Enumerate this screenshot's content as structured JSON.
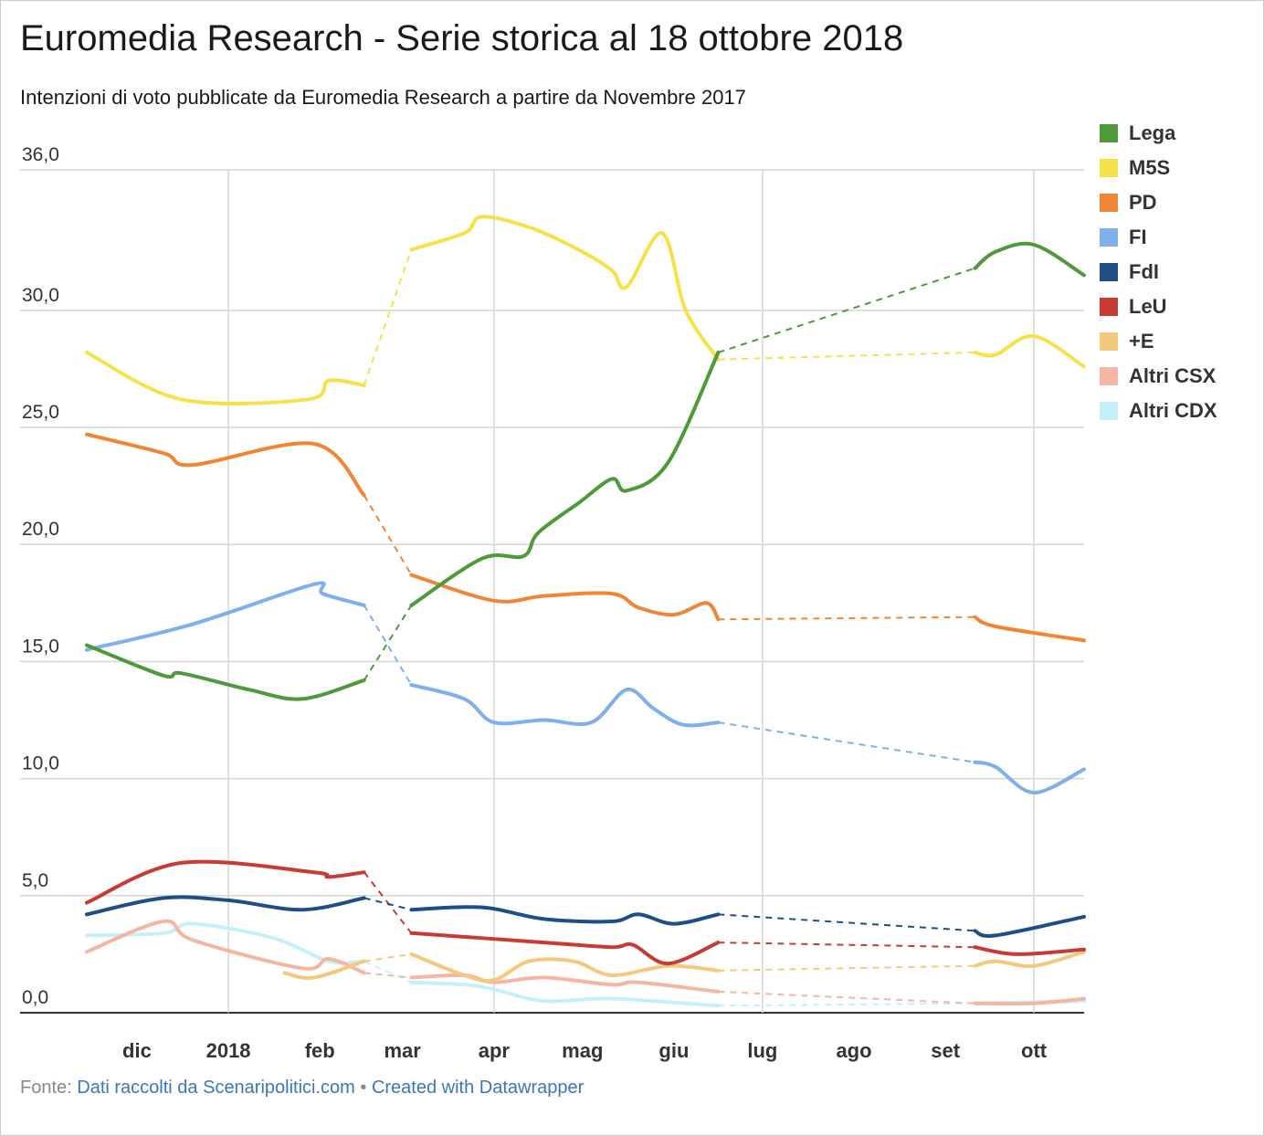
{
  "header": {
    "title": "Euromedia Research - Serie storica al 18 ottobre 2018",
    "subtitle": "Intenzioni di voto pubblicate da Euromedia Research a partire da Novembre 2017"
  },
  "footer": {
    "prefix": "Fonte: ",
    "source_label": "Dati raccolti da Scenaripolitici.com",
    "separator": " • ",
    "credit_label": "Created with Datawrapper"
  },
  "chart_data": {
    "type": "line",
    "title": "Euromedia Research - Serie storica al 18 ottobre 2018",
    "subtitle": "Intenzioni di voto pubblicate da Euromedia Research a partire da Novembre 2017",
    "xlabel": "",
    "ylabel": "",
    "x_axis": {
      "type": "date",
      "range": [
        "2017-11-14",
        "2018-10-18"
      ],
      "ticks": [
        {
          "date": "2017-12-01",
          "label": "dic"
        },
        {
          "date": "2018-01-01",
          "label": "2018"
        },
        {
          "date": "2018-02-01",
          "label": "feb"
        },
        {
          "date": "2018-03-01",
          "label": "mar"
        },
        {
          "date": "2018-04-01",
          "label": "apr"
        },
        {
          "date": "2018-05-01",
          "label": "mag"
        },
        {
          "date": "2018-06-01",
          "label": "giu"
        },
        {
          "date": "2018-07-01",
          "label": "lug"
        },
        {
          "date": "2018-08-01",
          "label": "ago"
        },
        {
          "date": "2018-09-01",
          "label": "set"
        },
        {
          "date": "2018-10-01",
          "label": "ott"
        }
      ],
      "vertical_grid": [
        "2018-01-01",
        "2018-04-01",
        "2018-07-01",
        "2018-10-01"
      ]
    },
    "y_axis": {
      "range": [
        0,
        36
      ],
      "ticks": [
        {
          "value": 0,
          "label": "0,0"
        },
        {
          "value": 5,
          "label": "5,0"
        },
        {
          "value": 10,
          "label": "10,0"
        },
        {
          "value": 15,
          "label": "15,0"
        },
        {
          "value": 20,
          "label": "20,0"
        },
        {
          "value": 25,
          "label": "25,0"
        },
        {
          "value": 30,
          "label": "30,0"
        },
        {
          "value": 36,
          "label": "36,0"
        }
      ]
    },
    "grid": true,
    "legend_position": "right",
    "gaps": [
      [
        "2018-02-16",
        "2018-03-04"
      ],
      [
        "2018-06-16",
        "2018-09-11"
      ]
    ],
    "series": [
      {
        "name": "Lega",
        "color": "#4e9a3a",
        "points": [
          [
            "2017-11-14",
            15.7
          ],
          [
            "2017-12-10",
            14.4
          ],
          [
            "2017-12-16",
            14.5
          ],
          [
            "2018-01-08",
            13.8
          ],
          [
            "2018-01-26",
            13.4
          ],
          [
            "2018-02-16",
            14.2
          ],
          [
            "2018-03-04",
            17.4
          ],
          [
            "2018-03-28",
            19.4
          ],
          [
            "2018-04-11",
            19.5
          ],
          [
            "2018-04-16",
            20.5
          ],
          [
            "2018-04-30",
            21.8
          ],
          [
            "2018-05-11",
            22.8
          ],
          [
            "2018-05-16",
            22.3
          ],
          [
            "2018-05-30",
            23.5
          ],
          [
            "2018-06-16",
            28.2
          ],
          [
            "2018-09-11",
            31.8
          ],
          [
            "2018-09-18",
            32.5
          ],
          [
            "2018-10-01",
            32.8
          ],
          [
            "2018-10-18",
            31.5
          ]
        ]
      },
      {
        "name": "M5S",
        "color": "#f5e24a",
        "points": [
          [
            "2017-11-14",
            28.2
          ],
          [
            "2017-12-16",
            26.2
          ],
          [
            "2018-01-28",
            26.2
          ],
          [
            "2018-02-04",
            27.0
          ],
          [
            "2018-02-16",
            26.8
          ],
          [
            "2018-03-04",
            32.6
          ],
          [
            "2018-03-22",
            33.3
          ],
          [
            "2018-03-28",
            34.0
          ],
          [
            "2018-04-14",
            33.5
          ],
          [
            "2018-05-01",
            32.5
          ],
          [
            "2018-05-11",
            31.7
          ],
          [
            "2018-05-16",
            31.0
          ],
          [
            "2018-05-28",
            33.3
          ],
          [
            "2018-06-05",
            30.0
          ],
          [
            "2018-06-16",
            27.9
          ],
          [
            "2018-09-11",
            28.2
          ],
          [
            "2018-09-18",
            28.1
          ],
          [
            "2018-10-01",
            28.9
          ],
          [
            "2018-10-18",
            27.6
          ]
        ]
      },
      {
        "name": "PD",
        "color": "#ef8636",
        "points": [
          [
            "2017-11-14",
            24.7
          ],
          [
            "2017-12-10",
            23.9
          ],
          [
            "2017-12-20",
            23.4
          ],
          [
            "2018-01-30",
            24.3
          ],
          [
            "2018-02-16",
            22.1
          ],
          [
            "2018-03-04",
            18.7
          ],
          [
            "2018-04-01",
            17.6
          ],
          [
            "2018-04-18",
            17.8
          ],
          [
            "2018-05-11",
            17.9
          ],
          [
            "2018-05-20",
            17.3
          ],
          [
            "2018-06-01",
            17.0
          ],
          [
            "2018-06-12",
            17.5
          ],
          [
            "2018-06-16",
            16.8
          ],
          [
            "2018-09-11",
            16.9
          ],
          [
            "2018-09-18",
            16.5
          ],
          [
            "2018-10-18",
            15.9
          ]
        ]
      },
      {
        "name": "FI",
        "color": "#7fb0ea",
        "points": [
          [
            "2017-11-14",
            15.5
          ],
          [
            "2017-12-20",
            16.6
          ],
          [
            "2018-01-30",
            18.3
          ],
          [
            "2018-02-02",
            17.9
          ],
          [
            "2018-02-16",
            17.4
          ],
          [
            "2018-03-04",
            14.0
          ],
          [
            "2018-03-22",
            13.4
          ],
          [
            "2018-04-01",
            12.4
          ],
          [
            "2018-04-18",
            12.5
          ],
          [
            "2018-05-04",
            12.4
          ],
          [
            "2018-05-16",
            13.8
          ],
          [
            "2018-05-25",
            13.0
          ],
          [
            "2018-06-04",
            12.3
          ],
          [
            "2018-06-16",
            12.4
          ],
          [
            "2018-09-11",
            10.7
          ],
          [
            "2018-09-18",
            10.5
          ],
          [
            "2018-10-01",
            9.4
          ],
          [
            "2018-10-18",
            10.4
          ]
        ]
      },
      {
        "name": "FdI",
        "color": "#1f4e87",
        "points": [
          [
            "2017-11-14",
            4.2
          ],
          [
            "2017-12-10",
            4.9
          ],
          [
            "2018-01-01",
            4.8
          ],
          [
            "2018-01-26",
            4.4
          ],
          [
            "2018-02-16",
            4.9
          ],
          [
            "2018-03-04",
            4.4
          ],
          [
            "2018-03-28",
            4.5
          ],
          [
            "2018-04-18",
            4.0
          ],
          [
            "2018-05-11",
            3.9
          ],
          [
            "2018-05-20",
            4.2
          ],
          [
            "2018-06-01",
            3.8
          ],
          [
            "2018-06-16",
            4.2
          ],
          [
            "2018-09-11",
            3.5
          ],
          [
            "2018-09-18",
            3.3
          ],
          [
            "2018-10-18",
            4.1
          ]
        ]
      },
      {
        "name": "LeU",
        "color": "#c73b34",
        "points": [
          [
            "2017-11-14",
            4.7
          ],
          [
            "2017-12-16",
            6.4
          ],
          [
            "2018-01-30",
            6.0
          ],
          [
            "2018-02-04",
            5.8
          ],
          [
            "2018-02-16",
            6.0
          ],
          [
            "2018-03-04",
            3.4
          ],
          [
            "2018-04-18",
            3.0
          ],
          [
            "2018-05-11",
            2.8
          ],
          [
            "2018-05-18",
            2.9
          ],
          [
            "2018-05-30",
            2.1
          ],
          [
            "2018-06-16",
            3.0
          ],
          [
            "2018-09-11",
            2.8
          ],
          [
            "2018-09-25",
            2.5
          ],
          [
            "2018-10-18",
            2.7
          ]
        ]
      },
      {
        "name": "+E",
        "color": "#f3c97e",
        "points": [
          [
            "2018-01-20",
            1.7
          ],
          [
            "2018-01-30",
            1.5
          ],
          [
            "2018-02-16",
            2.2
          ],
          [
            "2018-03-04",
            2.5
          ],
          [
            "2018-03-22",
            1.6
          ],
          [
            "2018-04-01",
            1.4
          ],
          [
            "2018-04-13",
            2.2
          ],
          [
            "2018-04-28",
            2.2
          ],
          [
            "2018-05-11",
            1.6
          ],
          [
            "2018-05-30",
            2.0
          ],
          [
            "2018-06-16",
            1.8
          ],
          [
            "2018-09-11",
            2.0
          ],
          [
            "2018-09-18",
            2.2
          ],
          [
            "2018-10-01",
            2.0
          ],
          [
            "2018-10-18",
            2.6
          ]
        ]
      },
      {
        "name": "Altri CSX",
        "color": "#f4b6a2",
        "points": [
          [
            "2017-11-14",
            2.6
          ],
          [
            "2017-12-10",
            3.9
          ],
          [
            "2017-12-20",
            3.1
          ],
          [
            "2018-01-26",
            1.9
          ],
          [
            "2018-02-04",
            2.3
          ],
          [
            "2018-02-16",
            1.7
          ],
          [
            "2018-03-04",
            1.5
          ],
          [
            "2018-03-22",
            1.6
          ],
          [
            "2018-04-01",
            1.3
          ],
          [
            "2018-04-18",
            1.5
          ],
          [
            "2018-05-11",
            1.2
          ],
          [
            "2018-05-20",
            1.3
          ],
          [
            "2018-06-16",
            0.9
          ],
          [
            "2018-09-11",
            0.4
          ],
          [
            "2018-10-01",
            0.4
          ],
          [
            "2018-10-18",
            0.6
          ]
        ]
      },
      {
        "name": "Altri CDX",
        "color": "#c6f0f8",
        "points": [
          [
            "2017-11-14",
            3.3
          ],
          [
            "2017-12-10",
            3.4
          ],
          [
            "2017-12-20",
            3.8
          ],
          [
            "2018-01-16",
            3.2
          ],
          [
            "2018-02-04",
            2.2
          ],
          [
            "2018-02-16",
            2.2
          ],
          [
            "2018-03-04",
            1.3
          ],
          [
            "2018-03-22",
            1.2
          ],
          [
            "2018-04-01",
            1.0
          ],
          [
            "2018-04-18",
            0.5
          ],
          [
            "2018-05-11",
            0.6
          ],
          [
            "2018-06-16",
            0.3
          ],
          [
            "2018-09-11",
            0.4
          ],
          [
            "2018-10-18",
            0.5
          ]
        ]
      }
    ]
  }
}
